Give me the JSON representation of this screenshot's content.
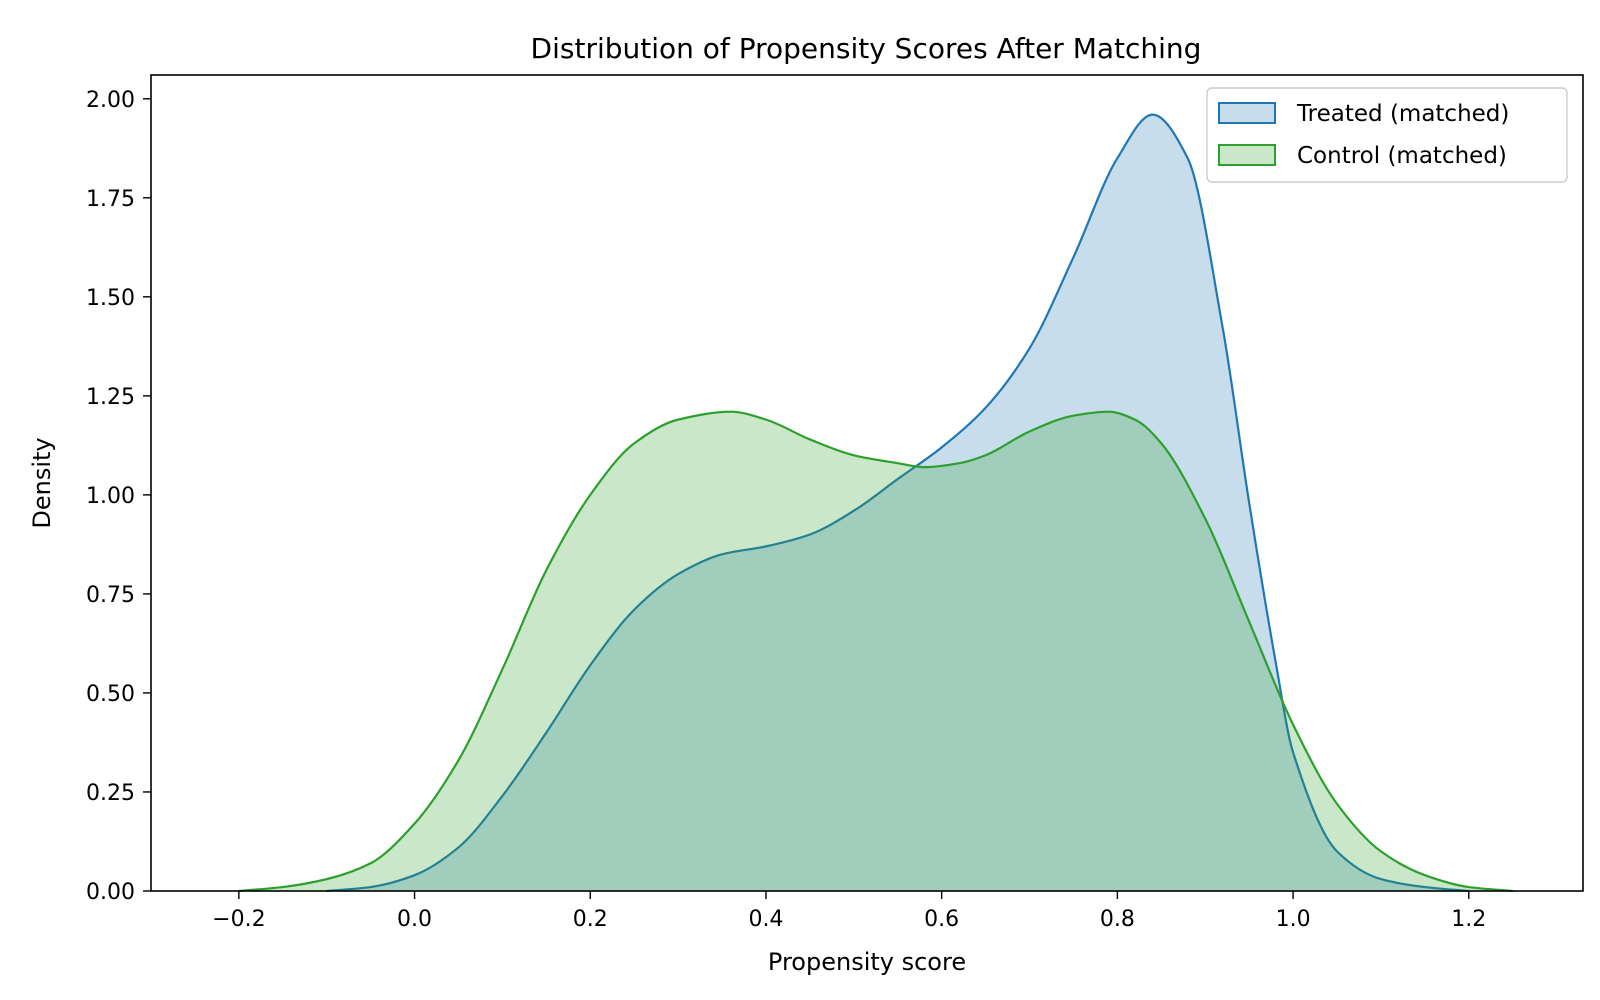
{
  "chart_data": {
    "type": "area",
    "title": "Distribution of Propensity Scores After Matching",
    "xlabel": "Propensity score",
    "ylabel": "Density",
    "xlim": [
      -0.3,
      1.33
    ],
    "ylim": [
      0,
      2.06
    ],
    "xticks": [
      -0.2,
      0.0,
      0.2,
      0.4,
      0.6,
      0.8,
      1.0,
      1.2
    ],
    "xtick_labels": [
      "−0.2",
      "0.0",
      "0.2",
      "0.4",
      "0.6",
      "0.8",
      "1.0",
      "1.2"
    ],
    "yticks": [
      0,
      0.25,
      0.5,
      0.75,
      1.0,
      1.25,
      1.5,
      1.75,
      2.0
    ],
    "ytick_labels": [
      "0.00",
      "0.25",
      "0.50",
      "0.75",
      "1.00",
      "1.25",
      "1.50",
      "1.75",
      "2.00"
    ],
    "grid": false,
    "legend_position": "top-right",
    "series": [
      {
        "name": "Treated (matched)",
        "color": "#1f77b4",
        "x": [
          -0.1,
          -0.05,
          0.0,
          0.05,
          0.1,
          0.15,
          0.2,
          0.25,
          0.3,
          0.35,
          0.4,
          0.45,
          0.5,
          0.55,
          0.6,
          0.65,
          0.7,
          0.75,
          0.8,
          0.84,
          0.88,
          0.92,
          0.95,
          0.98,
          1.0,
          1.05,
          1.1,
          1.15,
          1.2
        ],
        "y": [
          0.0,
          0.01,
          0.04,
          0.11,
          0.24,
          0.4,
          0.57,
          0.71,
          0.8,
          0.85,
          0.87,
          0.9,
          0.96,
          1.04,
          1.12,
          1.22,
          1.37,
          1.6,
          1.85,
          1.96,
          1.85,
          1.42,
          0.98,
          0.58,
          0.35,
          0.1,
          0.03,
          0.01,
          0.0
        ]
      },
      {
        "name": "Control (matched)",
        "color": "#2ca02c",
        "x": [
          -0.2,
          -0.15,
          -0.1,
          -0.05,
          0.0,
          0.05,
          0.1,
          0.15,
          0.2,
          0.25,
          0.3,
          0.36,
          0.4,
          0.45,
          0.5,
          0.55,
          0.58,
          0.62,
          0.65,
          0.7,
          0.75,
          0.79,
          0.82,
          0.85,
          0.9,
          0.95,
          1.0,
          1.05,
          1.1,
          1.15,
          1.2,
          1.25
        ],
        "y": [
          0.0,
          0.01,
          0.03,
          0.07,
          0.17,
          0.33,
          0.56,
          0.81,
          1.0,
          1.13,
          1.19,
          1.21,
          1.19,
          1.14,
          1.1,
          1.08,
          1.07,
          1.08,
          1.1,
          1.16,
          1.2,
          1.21,
          1.19,
          1.13,
          0.94,
          0.68,
          0.42,
          0.22,
          0.1,
          0.04,
          0.01,
          0.0
        ]
      }
    ]
  }
}
